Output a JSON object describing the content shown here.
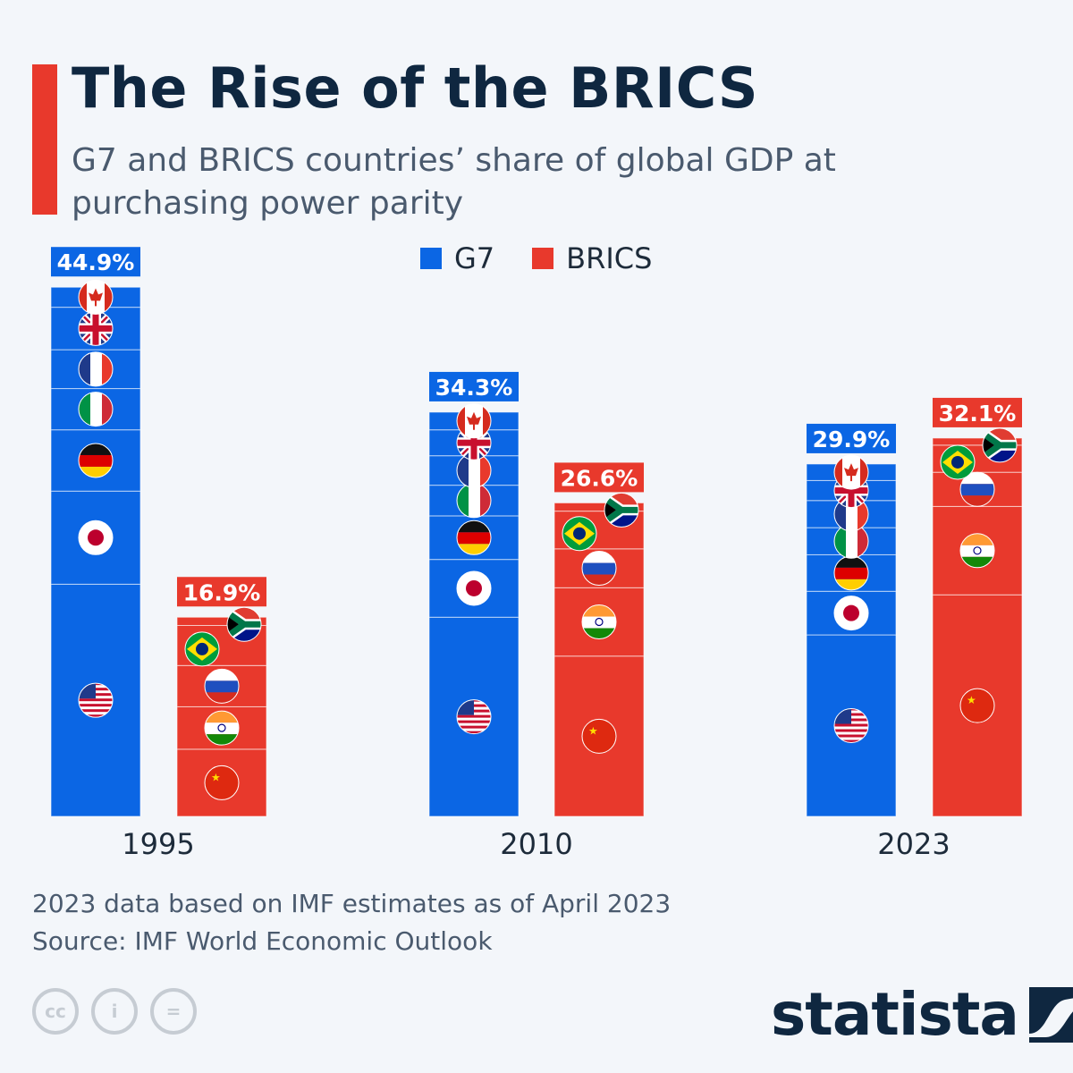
{
  "header": {
    "title": "The Rise of the BRICS",
    "subtitle": "G7 and BRICS countries’ share of global GDP at purchasing power parity"
  },
  "colors": {
    "G7": "#0b66e4",
    "BRICS": "#e8392c",
    "title": "#0f2740"
  },
  "chart_data": {
    "type": "bar",
    "stacked": true,
    "categories": [
      "1995",
      "2010",
      "2023"
    ],
    "legend": {
      "position": "top",
      "entries": [
        "G7",
        "BRICS"
      ]
    },
    "ylim": [
      0,
      45
    ],
    "series": [
      {
        "name": "G7",
        "totals": [
          "44.9%",
          "34.3%",
          "29.9%"
        ],
        "total_values": [
          44.9,
          34.3,
          29.9
        ],
        "segments": [
          {
            "country": "United States",
            "flag": "us",
            "values": [
              19.7,
              16.9,
              15.4
            ]
          },
          {
            "country": "Japan",
            "flag": "jp",
            "values": [
              7.9,
              4.9,
              3.7
            ]
          },
          {
            "country": "Germany",
            "flag": "de",
            "values": [
              5.2,
              3.7,
              3.1
            ]
          },
          {
            "country": "Italy",
            "flag": "it",
            "values": [
              3.5,
              2.6,
              2.3
            ]
          },
          {
            "country": "France",
            "flag": "fr",
            "values": [
              3.3,
              2.5,
              2.3
            ]
          },
          {
            "country": "United Kingdom",
            "flag": "gb",
            "values": [
              3.6,
              2.2,
              1.7
            ]
          },
          {
            "country": "Canada",
            "flag": "ca",
            "values": [
              1.7,
              1.5,
              1.4
            ]
          }
        ]
      },
      {
        "name": "BRICS",
        "totals": [
          "16.9%",
          "26.6%",
          "32.1%"
        ],
        "total_values": [
          16.9,
          26.6,
          32.1
        ],
        "segments": [
          {
            "country": "China",
            "flag": "cn",
            "values": [
              5.7,
              13.6,
              18.8
            ]
          },
          {
            "country": "India",
            "flag": "in",
            "values": [
              3.6,
              5.8,
              7.5
            ]
          },
          {
            "country": "Russia",
            "flag": "ru",
            "values": [
              3.5,
              3.3,
              2.9
            ]
          },
          {
            "country": "Brazil",
            "flag": "br",
            "values": [
              3.4,
              3.2,
              2.3
            ]
          },
          {
            "country": "South Africa",
            "flag": "za",
            "values": [
              0.7,
              0.7,
              0.6
            ]
          }
        ]
      }
    ]
  },
  "notes": {
    "line1": "2023 data based on IMF estimates as of April 2023",
    "line2": "Source: IMF World Economic Outlook"
  },
  "license": {
    "cc": "cc",
    "by": "i",
    "nd": "="
  },
  "brand": {
    "logo_text": "statista"
  }
}
